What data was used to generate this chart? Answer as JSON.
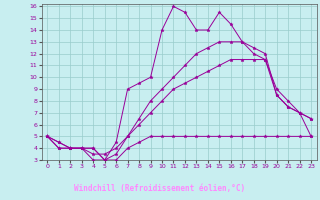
{
  "title": "",
  "xlabel": "Windchill (Refroidissement éolien,°C)",
  "bg_color": "#c8eef0",
  "grid_color": "#99cccc",
  "line_color": "#990099",
  "bottom_bar_color": "#330066",
  "xlabel_color": "#ff88ff",
  "xlim": [
    -0.5,
    23.5
  ],
  "ylim": [
    3,
    16
  ],
  "xticks": [
    0,
    1,
    2,
    3,
    4,
    5,
    6,
    7,
    8,
    9,
    10,
    11,
    12,
    13,
    14,
    15,
    16,
    17,
    18,
    19,
    20,
    21,
    22,
    23
  ],
  "yticks": [
    3,
    4,
    5,
    6,
    7,
    8,
    9,
    10,
    11,
    12,
    13,
    14,
    15,
    16
  ],
  "lines": [
    {
      "x": [
        0,
        1,
        2,
        3,
        4,
        5,
        6,
        7,
        8,
        9,
        10,
        11,
        12,
        13,
        14,
        15,
        16,
        17,
        18,
        19,
        20,
        21,
        22,
        23
      ],
      "y": [
        5,
        4,
        4,
        4,
        4,
        3,
        3,
        4,
        4.5,
        5,
        5,
        5,
        5,
        5,
        5,
        5,
        5,
        5,
        5,
        5,
        5,
        5,
        5,
        5
      ]
    },
    {
      "x": [
        0,
        1,
        2,
        3,
        4,
        5,
        6,
        7,
        8,
        9,
        10,
        11,
        12,
        13,
        14,
        15,
        16,
        17,
        18,
        19,
        20,
        21,
        22,
        23
      ],
      "y": [
        5,
        4,
        4,
        4,
        4,
        3,
        3.5,
        5,
        6.5,
        8,
        9,
        10,
        11,
        12,
        12.5,
        13,
        13,
        13,
        12,
        11.5,
        9,
        8,
        7,
        5
      ]
    },
    {
      "x": [
        0,
        1,
        2,
        3,
        4,
        5,
        6,
        7,
        8,
        9,
        10,
        11,
        12,
        13,
        14,
        15,
        16,
        17,
        18,
        19,
        20,
        21,
        22,
        23
      ],
      "y": [
        5,
        4.5,
        4,
        4,
        3,
        3,
        4.5,
        9,
        9.5,
        10,
        14,
        16,
        15.5,
        14,
        14,
        15.5,
        14.5,
        13,
        12.5,
        12,
        8.5,
        7.5,
        7,
        6.5
      ]
    },
    {
      "x": [
        0,
        1,
        2,
        3,
        4,
        5,
        6,
        7,
        8,
        9,
        10,
        11,
        12,
        13,
        14,
        15,
        16,
        17,
        18,
        19,
        20,
        21,
        22,
        23
      ],
      "y": [
        5,
        4.5,
        4,
        4,
        3.5,
        3.5,
        4,
        5,
        6,
        7,
        8,
        9,
        9.5,
        10,
        10.5,
        11,
        11.5,
        11.5,
        11.5,
        11.5,
        8.5,
        7.5,
        7,
        6.5
      ]
    }
  ]
}
